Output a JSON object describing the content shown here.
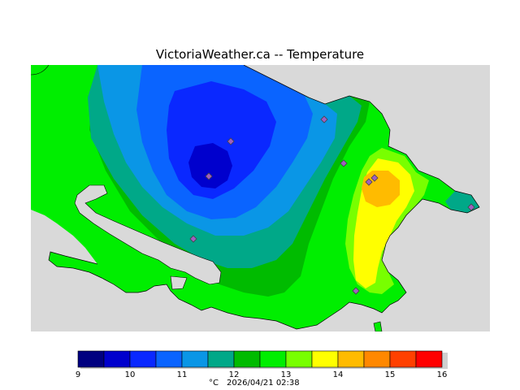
{
  "title": "VictoriaWeather.ca -- Temperature",
  "legend": {
    "unit": "°C",
    "timestamp": "2026/04/21 02:38",
    "ticks": [
      "9",
      "10",
      "11",
      "12",
      "13",
      "14",
      "15",
      "16"
    ],
    "colors": [
      "#000080",
      "#0000cd",
      "#0a28ff",
      "#0a64ff",
      "#0a96e6",
      "#00a888",
      "#00bb00",
      "#00ee00",
      "#78ff00",
      "#ffff00",
      "#ffbb00",
      "#ff8800",
      "#ff4000",
      "#ff0000"
    ]
  },
  "map": {
    "water_color": "#d9d9d9",
    "land_color": "#00ee00",
    "station_count": 9
  }
}
